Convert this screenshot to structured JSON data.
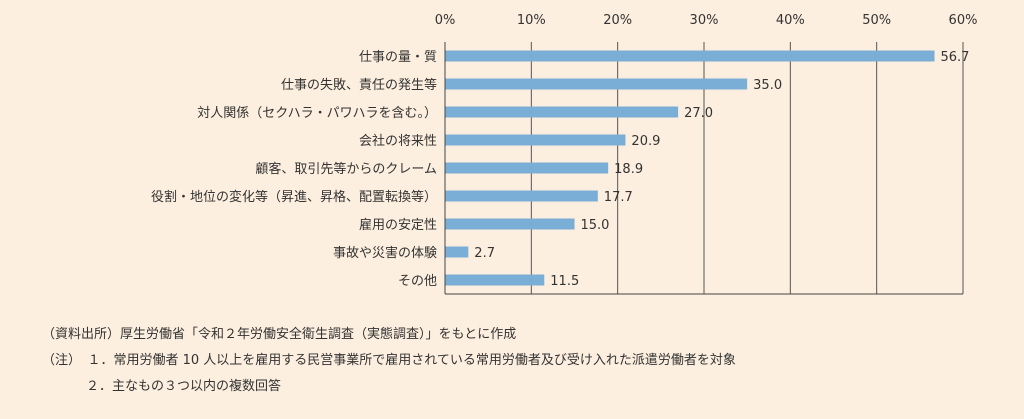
{
  "chart_data": {
    "type": "bar",
    "orientation": "horizontal",
    "categories": [
      "仕事の量・質",
      "仕事の失敗、責任の発生等",
      "対人関係（セクハラ・パワハラを含む。）",
      "会社の将来性",
      "顧客、取引先等からのクレーム",
      "役割・地位の変化等（昇進、昇格、配置転換等）",
      "雇用の安定性",
      "事故や災害の体験",
      "その他"
    ],
    "values": [
      56.7,
      35.0,
      27.0,
      20.9,
      18.9,
      17.7,
      15.0,
      2.7,
      11.5
    ],
    "value_labels": [
      "56.7",
      "35.0",
      "27.0",
      "20.9",
      "18.9",
      "17.7",
      "15.0",
      "2.7",
      "11.5"
    ],
    "xlim": [
      0,
      60
    ],
    "x_ticks": [
      "0%",
      "10%",
      "20%",
      "30%",
      "40%",
      "50%",
      "60%"
    ],
    "tick_values": [
      0,
      10,
      20,
      30,
      40,
      50,
      60
    ],
    "grid": true,
    "bar_color": "#7aaed6",
    "title": "",
    "xlabel": "",
    "ylabel": ""
  },
  "notes": {
    "source": "（資料出所）厚生労働省「令和２年労働安全衛生調査（実態調査）」をもとに作成",
    "note1": "（注）　１．常用労働者 10 人以上を雇用する民営事業所で雇用されている常用労働者及び受け入れた派遣労働者を対象",
    "note2": "２．主なもの３つ以内の複数回答"
  },
  "colors": {
    "background": "#fdefdf",
    "gridline": "#555555",
    "text": "#333333"
  }
}
